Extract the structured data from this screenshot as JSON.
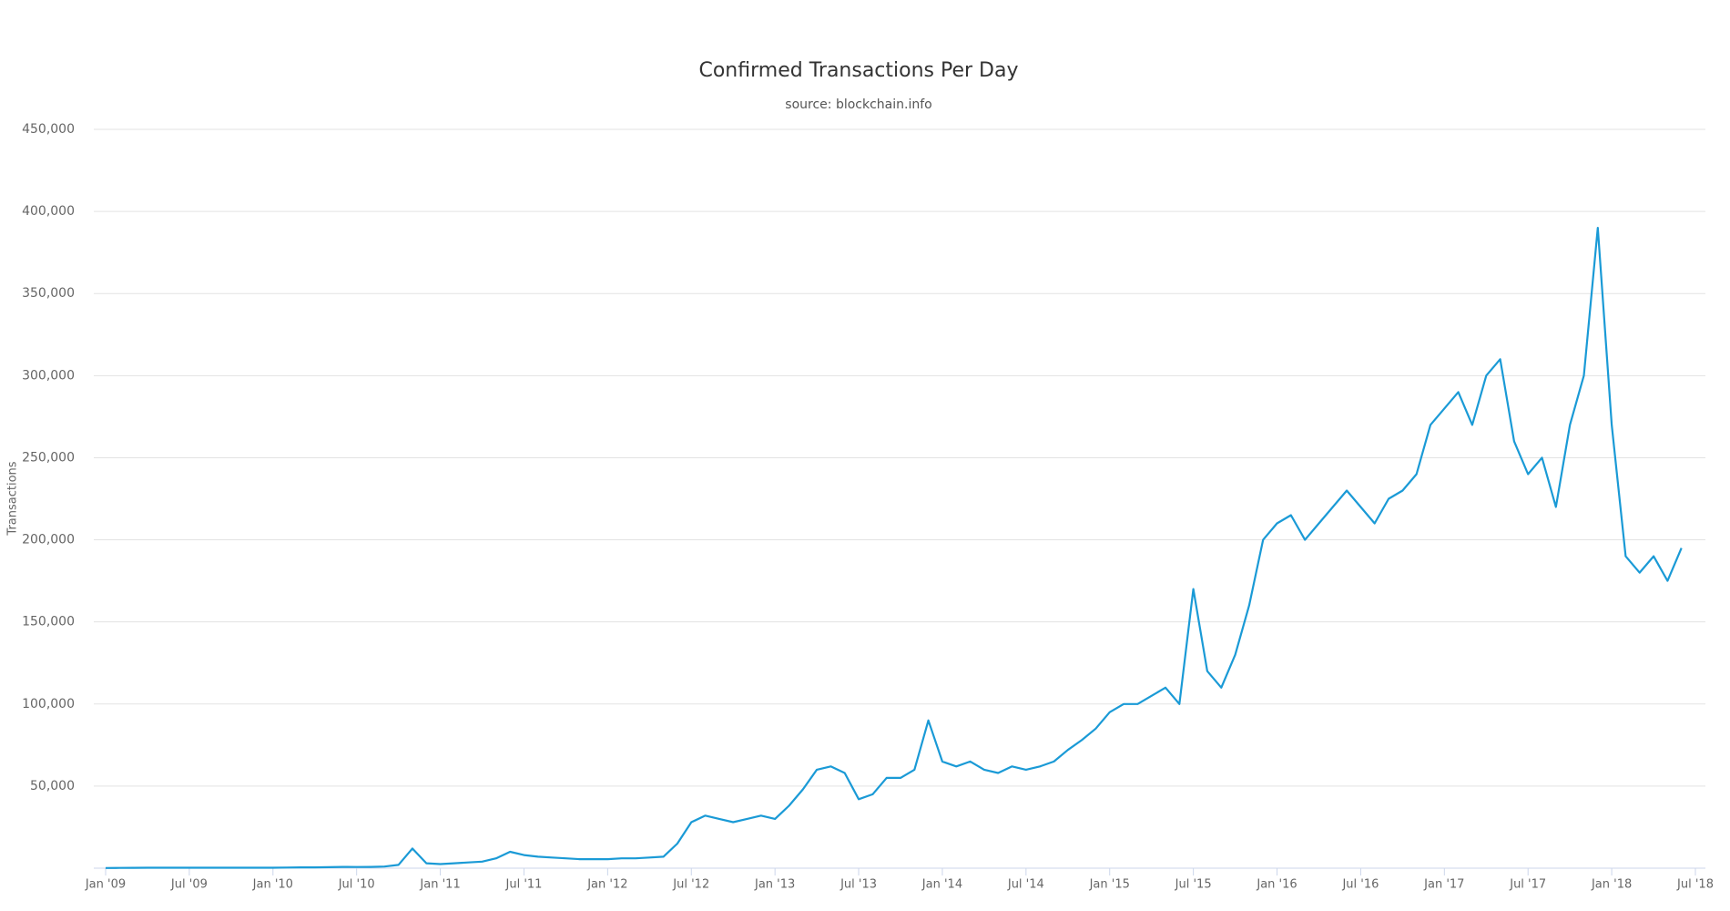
{
  "chart_data": {
    "type": "line",
    "title": "Confirmed Transactions Per Day",
    "subtitle": "source: blockchain.info",
    "y_label": "Transactions",
    "x": [
      "2009-01",
      "2009-02",
      "2009-03",
      "2009-04",
      "2009-05",
      "2009-06",
      "2009-07",
      "2009-08",
      "2009-09",
      "2009-10",
      "2009-11",
      "2009-12",
      "2010-01",
      "2010-02",
      "2010-03",
      "2010-04",
      "2010-05",
      "2010-06",
      "2010-07",
      "2010-08",
      "2010-09",
      "2010-10",
      "2010-11",
      "2010-12",
      "2011-01",
      "2011-02",
      "2011-03",
      "2011-04",
      "2011-05",
      "2011-06",
      "2011-07",
      "2011-08",
      "2011-09",
      "2011-10",
      "2011-11",
      "2011-12",
      "2012-01",
      "2012-02",
      "2012-03",
      "2012-04",
      "2012-05",
      "2012-06",
      "2012-07",
      "2012-08",
      "2012-09",
      "2012-10",
      "2012-11",
      "2012-12",
      "2013-01",
      "2013-02",
      "2013-03",
      "2013-04",
      "2013-05",
      "2013-06",
      "2013-07",
      "2013-08",
      "2013-09",
      "2013-10",
      "2013-11",
      "2013-12",
      "2014-01",
      "2014-02",
      "2014-03",
      "2014-04",
      "2014-05",
      "2014-06",
      "2014-07",
      "2014-08",
      "2014-09",
      "2014-10",
      "2014-11",
      "2014-12",
      "2015-01",
      "2015-02",
      "2015-03",
      "2015-04",
      "2015-05",
      "2015-06",
      "2015-07",
      "2015-08",
      "2015-09",
      "2015-10",
      "2015-11",
      "2015-12",
      "2016-01",
      "2016-02",
      "2016-03",
      "2016-04",
      "2016-05",
      "2016-06",
      "2016-07",
      "2016-08",
      "2016-09",
      "2016-10",
      "2016-11",
      "2016-12",
      "2017-01",
      "2017-02",
      "2017-03",
      "2017-04",
      "2017-05",
      "2017-06",
      "2017-07",
      "2017-08",
      "2017-09",
      "2017-10",
      "2017-11",
      "2017-12",
      "2018-01",
      "2018-02",
      "2018-03",
      "2018-04",
      "2018-05",
      "2018-06"
    ],
    "series": [
      {
        "name": "Transactions",
        "color": "#1a9ad6",
        "values": [
          100,
          150,
          200,
          250,
          300,
          300,
          300,
          300,
          300,
          250,
          250,
          250,
          300,
          400,
          500,
          500,
          600,
          800,
          700,
          800,
          1000,
          2000,
          12000,
          3000,
          2500,
          3000,
          3500,
          4000,
          6000,
          10000,
          8000,
          7000,
          6500,
          6000,
          5500,
          5500,
          5500,
          6000,
          6000,
          6500,
          7000,
          15000,
          28000,
          32000,
          30000,
          28000,
          30000,
          32000,
          30000,
          38000,
          48000,
          60000,
          62000,
          58000,
          42000,
          45000,
          55000,
          55000,
          60000,
          90000,
          65000,
          62000,
          65000,
          60000,
          58000,
          62000,
          60000,
          62000,
          65000,
          72000,
          78000,
          85000,
          95000,
          100000,
          100000,
          105000,
          110000,
          100000,
          170000,
          120000,
          110000,
          130000,
          160000,
          200000,
          210000,
          215000,
          200000,
          210000,
          220000,
          230000,
          220000,
          210000,
          225000,
          230000,
          240000,
          270000,
          280000,
          290000,
          270000,
          300000,
          310000,
          260000,
          240000,
          250000,
          220000,
          270000,
          300000,
          390000,
          270000,
          190000,
          180000,
          190000,
          175000,
          195000
        ]
      }
    ],
    "xlim": [
      "2009-01",
      "2018-07"
    ],
    "xticks": [
      {
        "value": "2009-01",
        "label": "Jan '09"
      },
      {
        "value": "2009-07",
        "label": "Jul '09"
      },
      {
        "value": "2010-01",
        "label": "Jan '10"
      },
      {
        "value": "2010-07",
        "label": "Jul '10"
      },
      {
        "value": "2011-01",
        "label": "Jan '11"
      },
      {
        "value": "2011-07",
        "label": "Jul '11"
      },
      {
        "value": "2012-01",
        "label": "Jan '12"
      },
      {
        "value": "2012-07",
        "label": "Jul '12"
      },
      {
        "value": "2013-01",
        "label": "Jan '13"
      },
      {
        "value": "2013-07",
        "label": "Jul '13"
      },
      {
        "value": "2014-01",
        "label": "Jan '14"
      },
      {
        "value": "2014-07",
        "label": "Jul '14"
      },
      {
        "value": "2015-01",
        "label": "Jan '15"
      },
      {
        "value": "2015-07",
        "label": "Jul '15"
      },
      {
        "value": "2016-01",
        "label": "Jan '16"
      },
      {
        "value": "2016-07",
        "label": "Jul '16"
      },
      {
        "value": "2017-01",
        "label": "Jan '17"
      },
      {
        "value": "2017-07",
        "label": "Jul '17"
      },
      {
        "value": "2018-01",
        "label": "Jan '18"
      },
      {
        "value": "2018-07",
        "label": "Jul '18"
      }
    ],
    "ylim": [
      0,
      450000
    ],
    "yticks": [
      {
        "value": 50000,
        "label": "50,000"
      },
      {
        "value": 100000,
        "label": "100,000"
      },
      {
        "value": 150000,
        "label": "150,000"
      },
      {
        "value": 200000,
        "label": "200,000"
      },
      {
        "value": 250000,
        "label": "250,000"
      },
      {
        "value": 300000,
        "label": "300,000"
      },
      {
        "value": 350000,
        "label": "350,000"
      },
      {
        "value": 400000,
        "label": "400,000"
      },
      {
        "value": 450000,
        "label": "450,000"
      }
    ],
    "grid": true
  }
}
